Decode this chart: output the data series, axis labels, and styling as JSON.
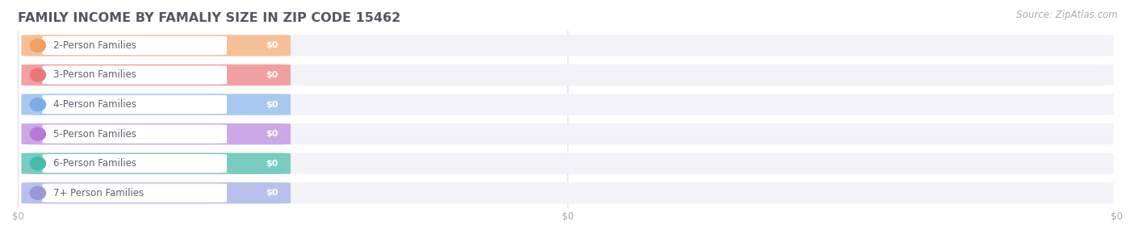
{
  "title": "FAMILY INCOME BY FAMALIY SIZE IN ZIP CODE 15462",
  "source_text": "Source: ZipAtlas.com",
  "categories": [
    "2-Person Families",
    "3-Person Families",
    "4-Person Families",
    "5-Person Families",
    "6-Person Families",
    "7+ Person Families"
  ],
  "values": [
    0,
    0,
    0,
    0,
    0,
    0
  ],
  "bar_colors": [
    "#f5c098",
    "#f0a0a0",
    "#a8c8f0",
    "#cca8e8",
    "#78ccc0",
    "#b8c0ec"
  ],
  "circle_colors": [
    "#f0a060",
    "#e87878",
    "#78aee8",
    "#b878d8",
    "#48bab0",
    "#9898d8"
  ],
  "value_labels": [
    "$0",
    "$0",
    "$0",
    "$0",
    "$0",
    "$0"
  ],
  "background_color": "#ffffff",
  "bar_bg_color": "#f2f2f8",
  "bar_sep_color": "#e0e0ea",
  "title_fontsize": 11.5,
  "label_fontsize": 8.5,
  "source_fontsize": 8.5
}
